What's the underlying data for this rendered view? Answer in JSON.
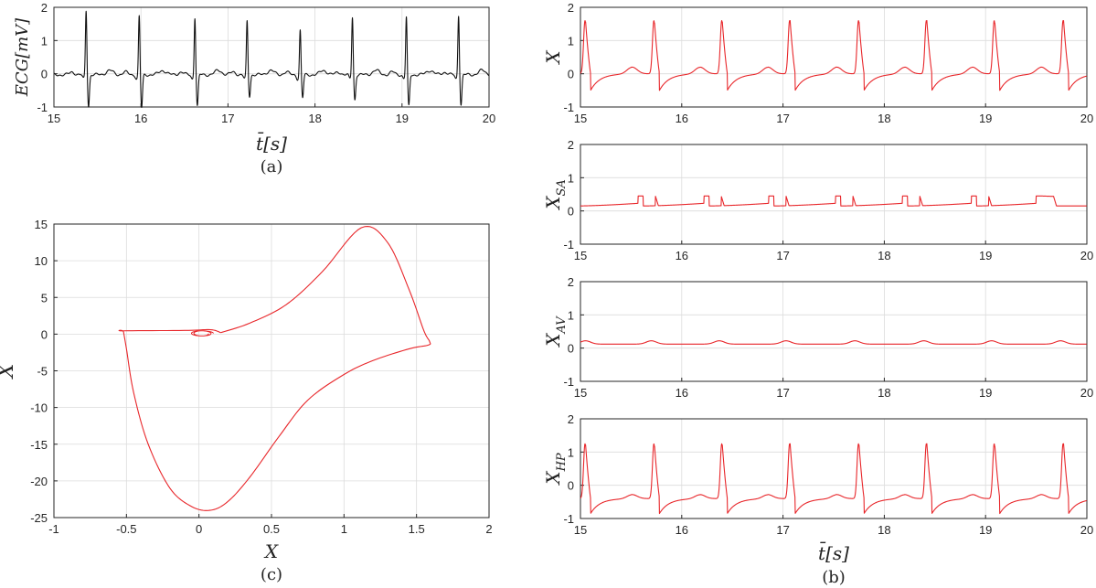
{
  "chart_data": [
    {
      "id": "ecg",
      "type": "line",
      "xlabel": "t̄[s]",
      "ylabel": "ECG[mV]",
      "caption": "(a)",
      "xlim": [
        15,
        20
      ],
      "ylim": [
        -1,
        2
      ],
      "xticks": [
        "15",
        "16",
        "17",
        "18",
        "19",
        "20"
      ],
      "yticks": [
        "-1",
        "0",
        "1",
        "2"
      ],
      "grid": true,
      "line_color": "#111111",
      "beats": [
        {
          "r_time": 15.37,
          "r_peak": 1.95,
          "s_trough": -0.95
        },
        {
          "r_time": 15.98,
          "r_peak": 1.78,
          "s_trough": -1.0
        },
        {
          "r_time": 16.62,
          "r_peak": 1.75,
          "s_trough": -0.95
        },
        {
          "r_time": 17.22,
          "r_peak": 1.62,
          "s_trough": -0.65
        },
        {
          "r_time": 17.83,
          "r_peak": 1.35,
          "s_trough": -0.7
        },
        {
          "r_time": 18.43,
          "r_peak": 1.75,
          "s_trough": -0.75
        },
        {
          "r_time": 19.05,
          "r_peak": 1.75,
          "s_trough": -0.95
        },
        {
          "r_time": 19.65,
          "r_peak": 1.82,
          "s_trough": -0.9
        }
      ]
    },
    {
      "id": "phase",
      "type": "line",
      "xlabel": "X",
      "ylabel": "Ẋ",
      "caption": "(c)",
      "xlim": [
        -1,
        2
      ],
      "ylim": [
        -25,
        15
      ],
      "xticks": [
        "-1",
        "-0.5",
        "0",
        "0.5",
        "1",
        "1.5",
        "2"
      ],
      "yticks": [
        "-25",
        "-20",
        "-15",
        "-10",
        "-5",
        "0",
        "5",
        "10",
        "15"
      ],
      "grid": true,
      "line_color": "#e8262a",
      "loop": [
        [
          0.15,
          0.2
        ],
        [
          0.35,
          1.5
        ],
        [
          0.6,
          4.0
        ],
        [
          0.85,
          8.5
        ],
        [
          1.12,
          14.5
        ],
        [
          1.3,
          12.5
        ],
        [
          1.45,
          6.0
        ],
        [
          1.55,
          0.5
        ],
        [
          1.59,
          -1.0
        ],
        [
          1.58,
          -1.5
        ],
        [
          1.45,
          -2.0
        ],
        [
          1.2,
          -3.6
        ],
        [
          1.0,
          -5.5
        ],
        [
          0.75,
          -9.0
        ],
        [
          0.55,
          -14.0
        ],
        [
          0.35,
          -19.5
        ],
        [
          0.2,
          -22.8
        ],
        [
          0.08,
          -24.0
        ],
        [
          -0.05,
          -23.5
        ],
        [
          -0.2,
          -21.0
        ],
        [
          -0.35,
          -15.0
        ],
        [
          -0.45,
          -8.0
        ],
        [
          -0.5,
          -2.0
        ],
        [
          -0.52,
          0.3
        ],
        [
          -0.52,
          0.45
        ],
        [
          -0.1,
          0.5
        ],
        [
          0.08,
          0.6
        ],
        [
          0.15,
          0.2
        ]
      ]
    },
    {
      "id": "X",
      "type": "line",
      "ylabel": "X",
      "xlim": [
        15,
        20
      ],
      "ylim": [
        -1,
        2
      ],
      "xticks": [
        "15",
        "16",
        "17",
        "18",
        "19",
        "20"
      ],
      "yticks": [
        "-1",
        "0",
        "1",
        "2"
      ],
      "grid": true,
      "line_color": "#e8262a",
      "peak_times": [
        15.05,
        15.73,
        16.4,
        17.07,
        17.75,
        18.42,
        19.09,
        19.77
      ],
      "peak": 1.6,
      "trough": -0.5,
      "baseline": 0.0,
      "pwave": 0.2
    },
    {
      "id": "XSA",
      "type": "line",
      "ylabel": "X",
      "ylabel_sub": "SA",
      "xlim": [
        15,
        20
      ],
      "ylim": [
        -1,
        2
      ],
      "xticks": [
        "15",
        "16",
        "17",
        "18",
        "19",
        "20"
      ],
      "yticks": [
        "-1",
        "0",
        "1",
        "2"
      ],
      "grid": true,
      "line_color": "#e8262a",
      "peak_times": [
        15.62,
        16.27,
        16.91,
        17.57,
        18.23,
        18.91,
        19.55
      ],
      "peak": 0.45,
      "low": 0.15
    },
    {
      "id": "XAV",
      "type": "line",
      "ylabel": "X",
      "ylabel_sub": "AV",
      "xlim": [
        15,
        20
      ],
      "ylim": [
        -1,
        2
      ],
      "xticks": [
        "15",
        "16",
        "17",
        "18",
        "19",
        "20"
      ],
      "yticks": [
        "-1",
        "0",
        "1",
        "2"
      ],
      "grid": true,
      "line_color": "#e8262a",
      "peak_times": [
        15.1,
        15.75,
        16.42,
        17.08,
        17.76,
        18.44,
        19.11,
        19.79
      ],
      "peak": 0.22,
      "low": 0.12
    },
    {
      "id": "XHP",
      "type": "line",
      "ylabel": "X",
      "ylabel_sub": "HP",
      "xlabel": "t̄[s]",
      "caption": "(b)",
      "xlim": [
        15,
        20
      ],
      "ylim": [
        -1,
        2
      ],
      "xticks": [
        "15",
        "16",
        "17",
        "18",
        "19",
        "20"
      ],
      "yticks": [
        "-1",
        "0",
        "1",
        "2"
      ],
      "grid": true,
      "line_color": "#e8262a",
      "peak_times": [
        15.05,
        15.73,
        16.4,
        17.07,
        17.75,
        18.42,
        19.09,
        19.77
      ],
      "peak": 1.25,
      "trough": -0.85,
      "baseline": -0.4
    }
  ]
}
